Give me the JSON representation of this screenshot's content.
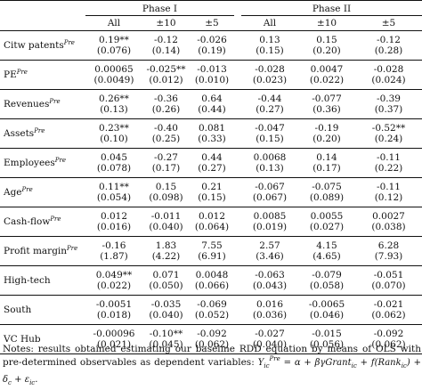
{
  "table": {
    "phase_headers": [
      "Phase I",
      "Phase II"
    ],
    "sub_headers": [
      "All",
      "±10",
      "±5",
      "All",
      "±10",
      "±5"
    ],
    "rows": [
      {
        "label": "Citw patents",
        "sup": "Pre",
        "coef": [
          "0.19**",
          "-0.12",
          "-0.026",
          "0.13",
          "0.15",
          "-0.12"
        ],
        "se": [
          "(0.076)",
          "(0.14)",
          "(0.19)",
          "(0.15)",
          "(0.20)",
          "(0.28)"
        ]
      },
      {
        "label": "PE",
        "sup": "Pre",
        "coef": [
          "0.00065",
          "-0.025**",
          "-0.013",
          "-0.028",
          "0.0047",
          "-0.028"
        ],
        "se": [
          "(0.0049)",
          "(0.012)",
          "(0.010)",
          "(0.023)",
          "(0.022)",
          "(0.024)"
        ]
      },
      {
        "label": "Revenues",
        "sup": "Pre",
        "coef": [
          "0.26**",
          "-0.36",
          "0.64",
          "-0.44",
          "-0.077",
          "-0.39"
        ],
        "se": [
          "(0.13)",
          "(0.26)",
          "(0.44)",
          "(0.27)",
          "(0.36)",
          "(0.37)"
        ]
      },
      {
        "label": "Assets",
        "sup": "Pre",
        "coef": [
          "0.23**",
          "-0.40",
          "0.081",
          "-0.047",
          "-0.19",
          "-0.52**"
        ],
        "se": [
          "(0.10)",
          "(0.25)",
          "(0.33)",
          "(0.15)",
          "(0.20)",
          "(0.24)"
        ]
      },
      {
        "label": "Employees",
        "sup": "Pre",
        "coef": [
          "0.045",
          "-0.27",
          "0.44",
          "0.0068",
          "0.14",
          "-0.11"
        ],
        "se": [
          "(0.078)",
          "(0.17)",
          "(0.27)",
          "(0.13)",
          "(0.17)",
          "(0.22)"
        ]
      },
      {
        "label": "Age",
        "sup": "Pre",
        "coef": [
          "0.11**",
          "0.15",
          "0.21",
          "-0.067",
          "-0.075",
          "-0.11"
        ],
        "se": [
          "(0.054)",
          "(0.098)",
          "(0.15)",
          "(0.067)",
          "(0.089)",
          "(0.12)"
        ]
      },
      {
        "label": "Cash-flow",
        "sup": "Pre",
        "coef": [
          "0.012",
          "-0.011",
          "0.012",
          "0.0085",
          "0.0055",
          "0.0027"
        ],
        "se": [
          "(0.016)",
          "(0.040)",
          "(0.064)",
          "(0.019)",
          "(0.027)",
          "(0.038)"
        ]
      },
      {
        "label": "Profit margin",
        "sup": "Pre",
        "coef": [
          "-0.16",
          "1.83",
          "7.55",
          "2.57",
          "4.15",
          "6.28"
        ],
        "se": [
          "(1.87)",
          "(4.22)",
          "(6.91)",
          "(3.46)",
          "(4.65)",
          "(7.93)"
        ]
      },
      {
        "label": "High-tech",
        "sup": "",
        "coef": [
          "0.049**",
          "0.071",
          "0.0048",
          "-0.063",
          "-0.079",
          "-0.051"
        ],
        "se": [
          "(0.022)",
          "(0.050)",
          "(0.066)",
          "(0.043)",
          "(0.058)",
          "(0.070)"
        ]
      },
      {
        "label": "South",
        "sup": "",
        "coef": [
          "-0.0051",
          "-0.035",
          "-0.069",
          "0.016",
          "-0.0065",
          "-0.021"
        ],
        "se": [
          "(0.018)",
          "(0.040)",
          "(0.052)",
          "(0.036)",
          "(0.046)",
          "(0.062)"
        ]
      },
      {
        "label": "VC Hub",
        "sup": "",
        "coef": [
          "-0.00096",
          "-0.10**",
          "-0.092",
          "-0.027",
          "-0.015",
          "-0.092"
        ],
        "se": [
          "(0.021)",
          "(0.045)",
          "(0.062)",
          "(0.040)",
          "(0.056)",
          "(0.062)"
        ]
      }
    ]
  },
  "notes": {
    "text": "Notes: results obtained estimating our baseline RDD equation by means of OLS with pre-determined observables as dependent variables: ",
    "formula": "Y_ic^Pre = α + βγGrant_ic + f(Rank_ic) + δ_c + ε_ic."
  }
}
